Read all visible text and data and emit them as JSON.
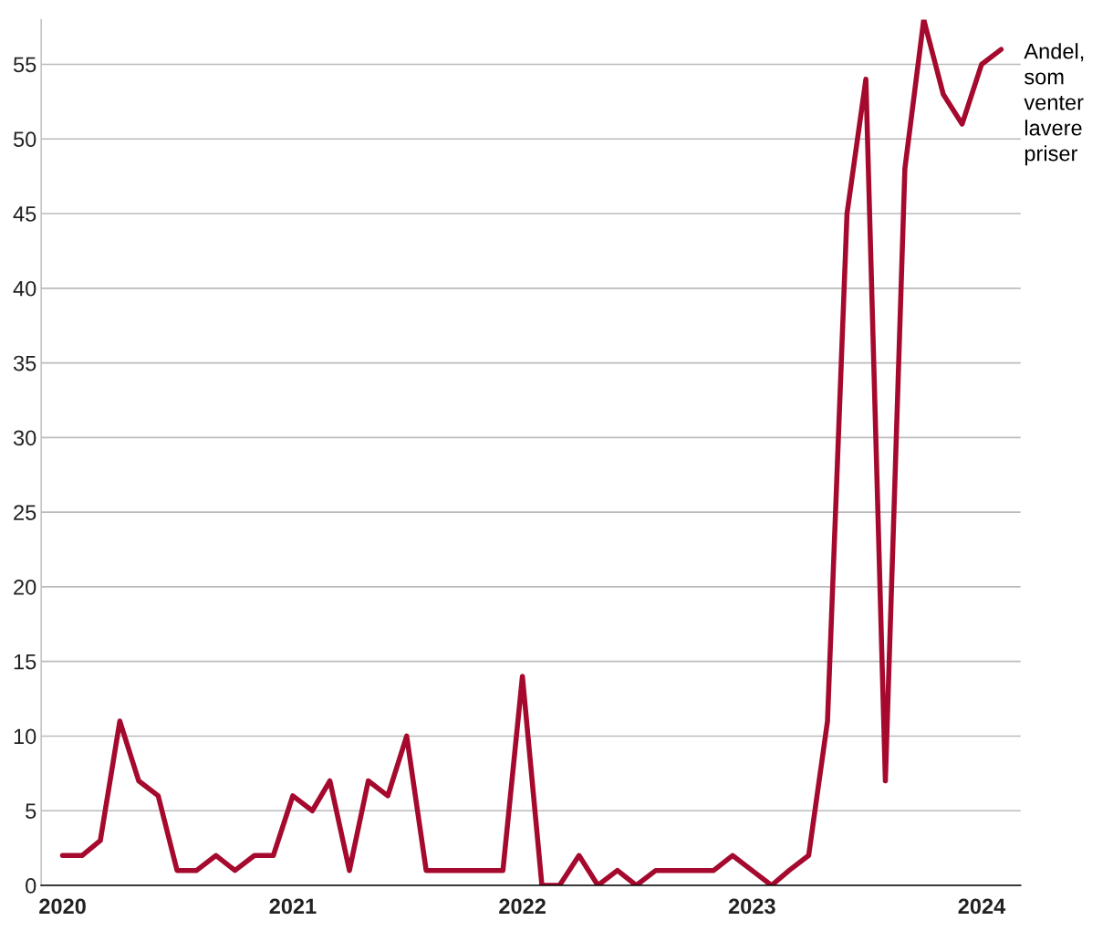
{
  "chart_data": {
    "type": "line",
    "x": [
      "2020-01",
      "2020-02",
      "2020-03",
      "2020-04",
      "2020-05",
      "2020-06",
      "2020-07",
      "2020-08",
      "2020-09",
      "2020-10",
      "2020-11",
      "2020-12",
      "2021-01",
      "2021-02",
      "2021-03",
      "2021-04",
      "2021-05",
      "2021-06",
      "2021-07",
      "2021-08",
      "2021-09",
      "2021-10",
      "2021-11",
      "2021-12",
      "2022-01",
      "2022-02",
      "2022-03",
      "2022-04",
      "2022-05",
      "2022-06",
      "2022-07",
      "2022-08",
      "2022-09",
      "2022-10",
      "2022-11",
      "2022-12",
      "2023-01",
      "2023-02",
      "2023-03",
      "2023-04",
      "2023-05",
      "2023-06",
      "2023-07",
      "2023-08",
      "2023-09",
      "2023-10",
      "2023-11",
      "2023-12",
      "2024-01",
      "2024-02"
    ],
    "series": [
      {
        "name": "Andel,\nsom\nventer\nlavere\npriser",
        "color": "#a50a2e",
        "values": [
          2,
          2,
          3,
          11,
          7,
          6,
          1,
          1,
          2,
          1,
          2,
          2,
          6,
          5,
          7,
          1,
          7,
          6,
          10,
          1,
          1,
          1,
          1,
          1,
          14,
          0,
          0,
          2,
          0,
          1,
          0,
          1,
          1,
          1,
          1,
          2,
          1,
          0,
          1,
          2,
          11,
          45,
          54,
          7,
          48,
          58,
          53,
          51,
          55,
          56
        ]
      }
    ],
    "xlim": [
      "2019-11-28",
      "2024-03-03"
    ],
    "xticks": [
      {
        "value": "2020-01",
        "label": "2020"
      },
      {
        "value": "2021-01",
        "label": "2021"
      },
      {
        "value": "2022-01",
        "label": "2022"
      },
      {
        "value": "2023-01",
        "label": "2023"
      },
      {
        "value": "2024-01",
        "label": "2024"
      }
    ],
    "ylim": [
      0,
      58
    ],
    "yticks": [
      0,
      5,
      10,
      15,
      20,
      25,
      30,
      35,
      40,
      45,
      50,
      55
    ],
    "grid": "y",
    "legend": false,
    "marker": "none",
    "line_style": "solid"
  }
}
